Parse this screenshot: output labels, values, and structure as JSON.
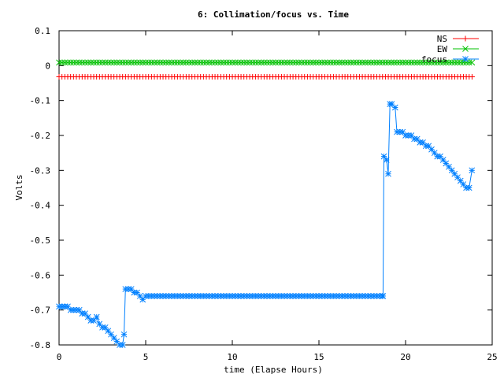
{
  "chart_data": {
    "type": "line",
    "title": "6: Collimation/focus vs. Time",
    "xlabel": "time (Elapse Hours)",
    "ylabel": "Volts",
    "xlim": [
      0,
      25
    ],
    "ylim": [
      -0.8,
      0.1
    ],
    "x_ticks": [
      "0",
      "5",
      "10",
      "15",
      "20",
      "25"
    ],
    "y_ticks": [
      "0.1",
      "0",
      "-0.1",
      "-0.2",
      "-0.3",
      "-0.4",
      "-0.5",
      "-0.6",
      "-0.7",
      "-0.8"
    ],
    "grid": false,
    "legend_position": "top-right",
    "series": [
      {
        "name": "NS",
        "color": "#ff0000",
        "marker": "plus",
        "x": [
          0.0,
          24.0
        ],
        "y": [
          -0.032,
          -0.032
        ],
        "sample_every_hours": 0.1667,
        "note": "constant series sampled every 10 minutes"
      },
      {
        "name": "EW",
        "color": "#00c000",
        "marker": "cross",
        "x": [
          0.0,
          24.0
        ],
        "y": [
          0.009,
          0.009
        ],
        "sample_every_hours": 0.1667
      },
      {
        "name": "focus",
        "color": "#0080ff",
        "marker": "star",
        "x": [
          0.0,
          0.17,
          0.33,
          0.5,
          0.67,
          0.83,
          1.0,
          1.17,
          1.33,
          1.5,
          1.67,
          1.83,
          2.0,
          2.17,
          2.33,
          2.5,
          2.67,
          2.83,
          3.0,
          3.17,
          3.33,
          3.5,
          3.67,
          3.75,
          3.83,
          4.0,
          4.17,
          4.33,
          4.5,
          4.67,
          4.83,
          5.0,
          18.7,
          18.75,
          18.9,
          19.0,
          19.1,
          19.2,
          19.4,
          19.5,
          19.67,
          19.83,
          20.0,
          20.17,
          20.33,
          20.5,
          20.67,
          20.83,
          21.0,
          21.17,
          21.33,
          21.5,
          21.67,
          21.83,
          22.0,
          22.17,
          22.33,
          22.5,
          22.67,
          22.83,
          23.0,
          23.17,
          23.33,
          23.5,
          23.67,
          23.83
        ],
        "y": [
          -0.69,
          -0.69,
          -0.69,
          -0.69,
          -0.7,
          -0.7,
          -0.7,
          -0.7,
          -0.71,
          -0.71,
          -0.72,
          -0.73,
          -0.73,
          -0.72,
          -0.74,
          -0.75,
          -0.75,
          -0.76,
          -0.77,
          -0.78,
          -0.79,
          -0.8,
          -0.8,
          -0.77,
          -0.64,
          -0.64,
          -0.64,
          -0.65,
          -0.65,
          -0.66,
          -0.67,
          -0.66,
          -0.66,
          -0.26,
          -0.27,
          -0.31,
          -0.11,
          -0.11,
          -0.12,
          -0.19,
          -0.19,
          -0.19,
          -0.2,
          -0.2,
          -0.2,
          -0.21,
          -0.21,
          -0.22,
          -0.22,
          -0.23,
          -0.23,
          -0.24,
          -0.25,
          -0.26,
          -0.26,
          -0.27,
          -0.28,
          -0.29,
          -0.3,
          -0.31,
          -0.32,
          -0.33,
          -0.34,
          -0.35,
          -0.35,
          -0.3
        ],
        "flat_segment": {
          "from_x": 5.0,
          "to_x": 18.7,
          "y": -0.66
        }
      }
    ]
  }
}
